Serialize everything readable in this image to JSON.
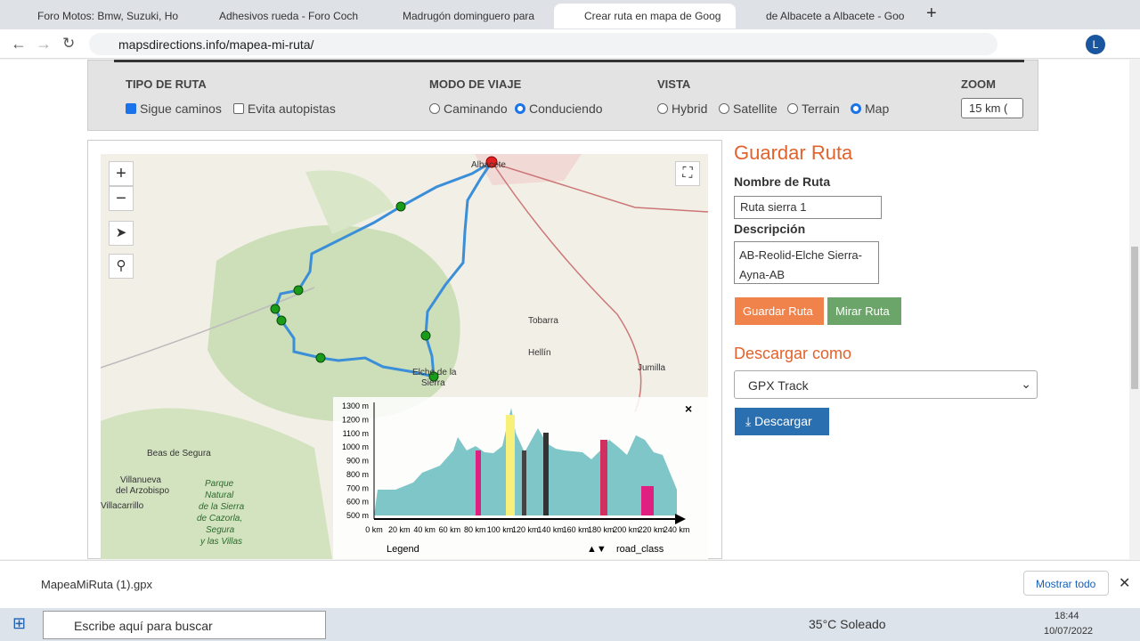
{
  "tabs": [
    "Foro Motos: Bmw, Suzuki, Ho",
    "Adhesivos rueda - Foro Coch",
    "Madrugón dominguero para",
    "Crear ruta en mapa de Goog",
    "de Albacete a Albacete - Goo"
  ],
  "address": "mapsdirections.info/mapea-mi-ruta/",
  "profile_initial": "L",
  "options": {
    "route_type": {
      "title": "TIPO DE RUTA",
      "items": [
        "Sigue caminos",
        "Evita autopistas"
      ]
    },
    "travel_mode": {
      "title": "MODO DE VIAJE",
      "items": [
        "Caminando",
        "Conduciendo"
      ]
    },
    "view": {
      "title": "VISTA",
      "items": [
        "Hybrid",
        "Satellite",
        "Terrain",
        "Map"
      ]
    },
    "zoom": {
      "title": "ZOOM",
      "value": "15 km ("
    }
  },
  "map": {
    "controls": [
      "+",
      "−"
    ],
    "places": [
      "Albacete",
      "Tobarra",
      "Hellín",
      "Jumilla",
      "Elche de la",
      "Sierra",
      "Beas de Segura",
      "Villanueva",
      "del Arzobispo",
      "Villacarrillo",
      "Parque",
      "Natural",
      "de la Sierra",
      "de Cazorla,",
      "Segura",
      "y las Villas"
    ],
    "elevation": {
      "yticks": [
        "1300 m",
        "1200 m",
        "1100 m",
        "1000 m",
        "900 m",
        "800 m",
        "700 m",
        "600 m",
        "500 m"
      ],
      "xticks": [
        "0 km",
        "20 km",
        "40 km",
        "60 km",
        "80 km",
        "100 km",
        "120 km",
        "140 km",
        "160 km",
        "180 km",
        "200 km",
        "220 km",
        "240 km"
      ],
      "legend": "Legend",
      "road_class": "road_class",
      "close": "×"
    }
  },
  "save": {
    "title": "Guardar Ruta",
    "name_label": "Nombre de Ruta",
    "name_value": "Ruta  sierra 1",
    "desc_label": "Descripción",
    "desc_value": "AB-Reolid-Elche Sierra-Ayna-AB",
    "save_button": "Guardar Ruta",
    "view_button": "Mirar Ruta",
    "download_title": "Descargar como",
    "format": "GPX Track",
    "download_button": "Descargar"
  },
  "downloads": {
    "file": "MapeaMiRuta (1).gpx",
    "show_all": "Mostrar todo"
  },
  "taskbar": {
    "search": "Escribe aquí para buscar",
    "weather": "35°C Soleado",
    "time": "18:44",
    "date": "10/07/2022"
  }
}
